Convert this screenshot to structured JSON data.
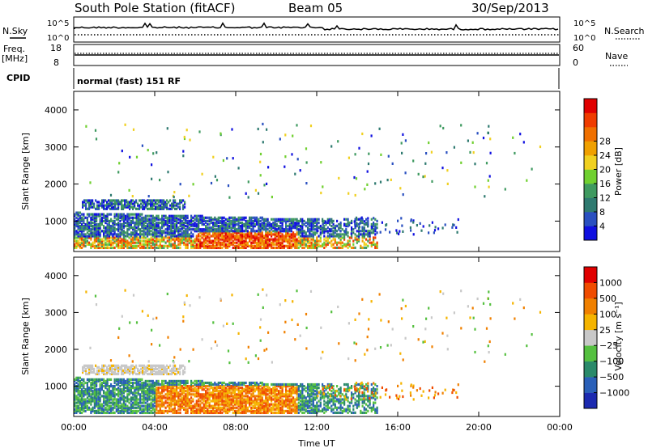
{
  "header": {
    "title": "South Pole Station (fitACF)",
    "beam": "Beam 05",
    "date": "30/Sep/2013"
  },
  "top_panels": {
    "nsky_label": "N.Sky",
    "nsearch_label": "N.Search",
    "noise_ticks": [
      "10^5",
      "10^0"
    ],
    "freq_label_1": "Freq.",
    "freq_label_2": "[MHz]",
    "freq_ticks": [
      "18",
      "8"
    ],
    "nave_label": "Nave",
    "nave_ticks": [
      "60",
      "0"
    ],
    "cpid_label": "CPID",
    "cpid_text": "normal (fast) 151 RF"
  },
  "chart_data": [
    {
      "type": "heatmap",
      "name": "power",
      "ylabel": "Slant Range [km]",
      "xlabel": "",
      "colorbar_label": "Power [dB]",
      "ylim": [
        180,
        4500
      ],
      "yticks": [
        1000,
        2000,
        3000,
        4000
      ],
      "colorbar_ticks": [
        "4",
        "8",
        "12",
        "16",
        "20",
        "24",
        "28"
      ],
      "colorbar_colors": [
        "#1010e0",
        "#2a50c0",
        "#2f7a70",
        "#3f9a60",
        "#70d030",
        "#f0d020",
        "#f0a000",
        "#f07000",
        "#f03c00",
        "#e00000"
      ]
    },
    {
      "type": "heatmap",
      "name": "velocity",
      "ylabel": "Slant Range [km]",
      "xlabel": "Time UT",
      "colorbar_label": "Velocity [m s⁻¹]",
      "ylim": [
        180,
        4500
      ],
      "yticks": [
        1000,
        2000,
        3000,
        4000
      ],
      "xticks": [
        "00:00",
        "04:00",
        "08:00",
        "12:00",
        "16:00",
        "20:00",
        "00:00"
      ],
      "colorbar_ticks": [
        "1000",
        "500",
        "100",
        "25",
        "−25",
        "−100",
        "−500",
        "−1000"
      ],
      "colorbar_colors": [
        "#1c2ab0",
        "#2a60b8",
        "#2a8a6a",
        "#55c040",
        "#c8c8c8",
        "#f5b400",
        "#f08000",
        "#f04c00",
        "#e00000"
      ]
    }
  ]
}
